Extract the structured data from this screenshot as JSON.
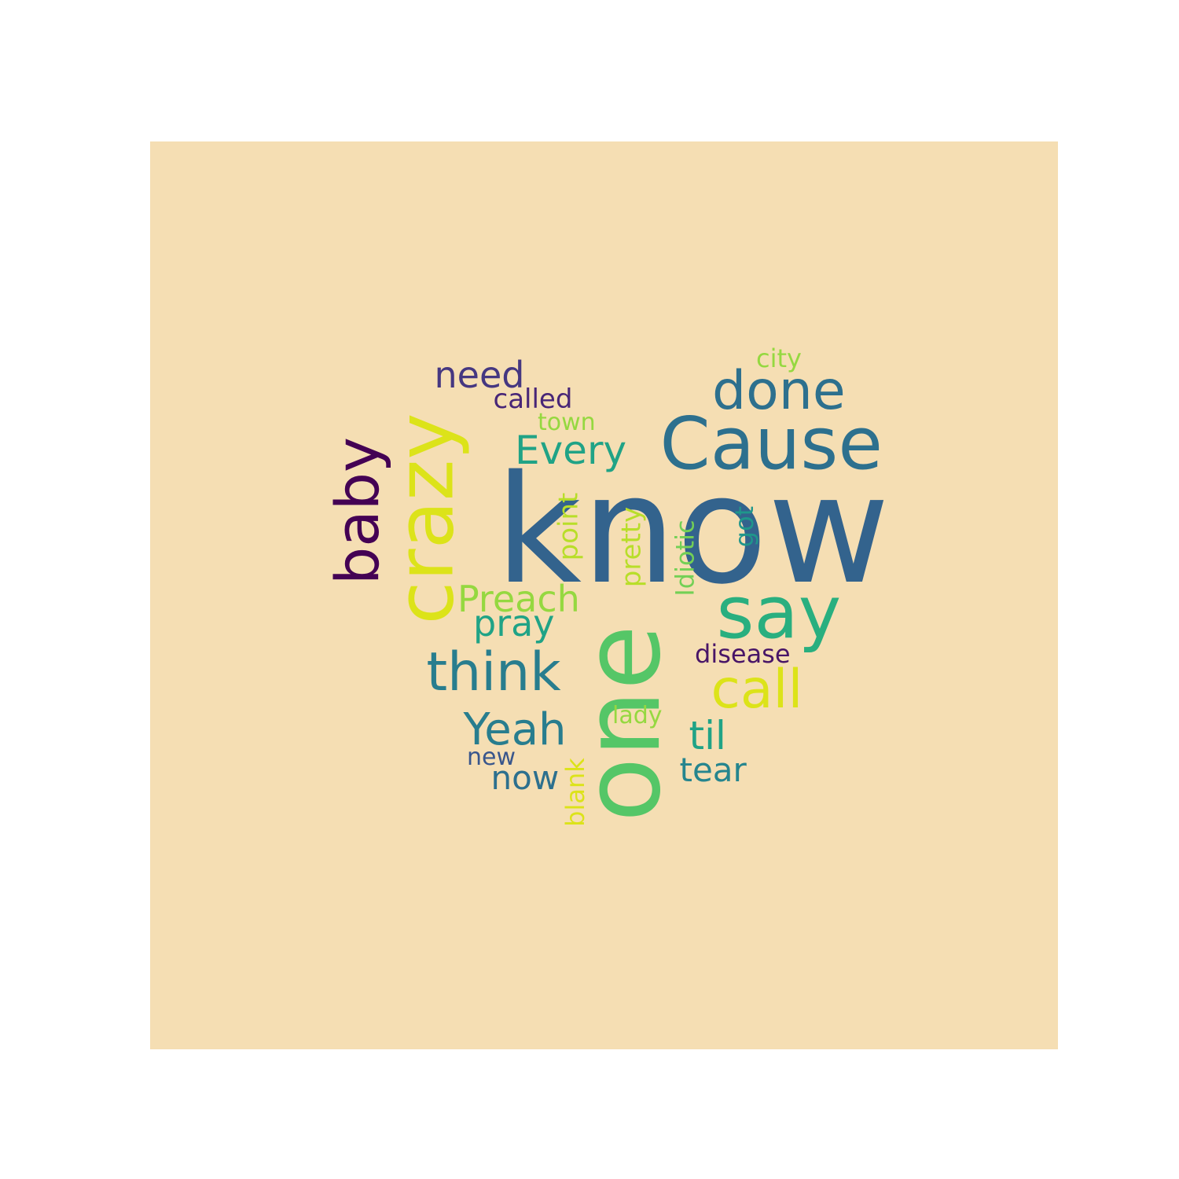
{
  "background_color": "#F5DEB3",
  "page_color": "#FFFFFF",
  "words": [
    {
      "text": "know",
      "color": "#33638D",
      "rotated": false
    },
    {
      "text": "one",
      "color": "#55C667",
      "rotated": true
    },
    {
      "text": "Cause",
      "color": "#2D708E",
      "rotated": false
    },
    {
      "text": "crazy",
      "color": "#DCE319",
      "rotated": true
    },
    {
      "text": "say",
      "color": "#29AF7F",
      "rotated": false
    },
    {
      "text": "done",
      "color": "#2D708E",
      "rotated": false
    },
    {
      "text": "baby",
      "color": "#440154",
      "rotated": true
    },
    {
      "text": "think",
      "color": "#287D8E",
      "rotated": false
    },
    {
      "text": "call",
      "color": "#DCE319",
      "rotated": false
    },
    {
      "text": "Yeah",
      "color": "#287D8E",
      "rotated": false
    },
    {
      "text": "Every",
      "color": "#20A386",
      "rotated": false
    },
    {
      "text": "til",
      "color": "#20A386",
      "rotated": false
    },
    {
      "text": "need",
      "color": "#453781",
      "rotated": false
    },
    {
      "text": "Preach",
      "color": "#95D840",
      "rotated": false
    },
    {
      "text": "pray",
      "color": "#20A386",
      "rotated": false
    },
    {
      "text": "tear",
      "color": "#25858E",
      "rotated": false
    },
    {
      "text": "now",
      "color": "#2D708E",
      "rotated": false
    },
    {
      "text": "called",
      "color": "#482677",
      "rotated": false
    },
    {
      "text": "disease",
      "color": "#481567",
      "rotated": false
    },
    {
      "text": "city",
      "color": "#95D840",
      "rotated": false
    },
    {
      "text": "town",
      "color": "#95D840",
      "rotated": false
    },
    {
      "text": "point",
      "color": "#B8DE29",
      "rotated": true
    },
    {
      "text": "pretty",
      "color": "#B8DE29",
      "rotated": true
    },
    {
      "text": "Idiotic",
      "color": "#73D055",
      "rotated": true
    },
    {
      "text": "got",
      "color": "#1F968B",
      "rotated": true
    },
    {
      "text": "lady",
      "color": "#95D840",
      "rotated": false
    },
    {
      "text": "new",
      "color": "#39568C",
      "rotated": false
    },
    {
      "text": "blank",
      "color": "#DCE319",
      "rotated": true
    }
  ]
}
